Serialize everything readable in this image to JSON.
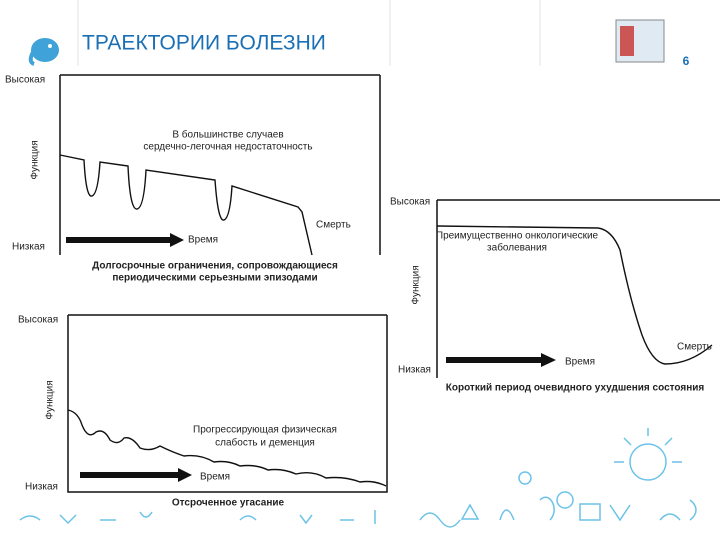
{
  "header": {
    "title": "ТРАЕКТОРИИ БОЛЕЗНИ",
    "page_number": "6"
  },
  "panels": [
    {
      "high": "Высокая",
      "low": "Низкая",
      "y_label": "Функция",
      "annotation": [
        "В большинстве случаев",
        "сердечно-легочная недостаточность"
      ],
      "death": "Смерть",
      "time": "Время",
      "caption": [
        "Долгосрочные ограничения, сопровождающиеся",
        "периодическими серьезными эпизодами"
      ]
    },
    {
      "high": "Высокая",
      "low": "Низкая",
      "y_label": "Функция",
      "annotation": [
        "Преимущественно онкологические",
        "заболевания"
      ],
      "death": "Смерть",
      "time": "Время",
      "caption": [
        "Короткий период очевидного ухудшения состояния"
      ]
    },
    {
      "high": "Высокая",
      "low": "Низкая",
      "y_label": "Функция",
      "annotation": [
        "Прогрессирующая физическая",
        "слабость и деменция"
      ],
      "time": "Время",
      "caption": [
        "Отсроченное угасание"
      ]
    }
  ]
}
